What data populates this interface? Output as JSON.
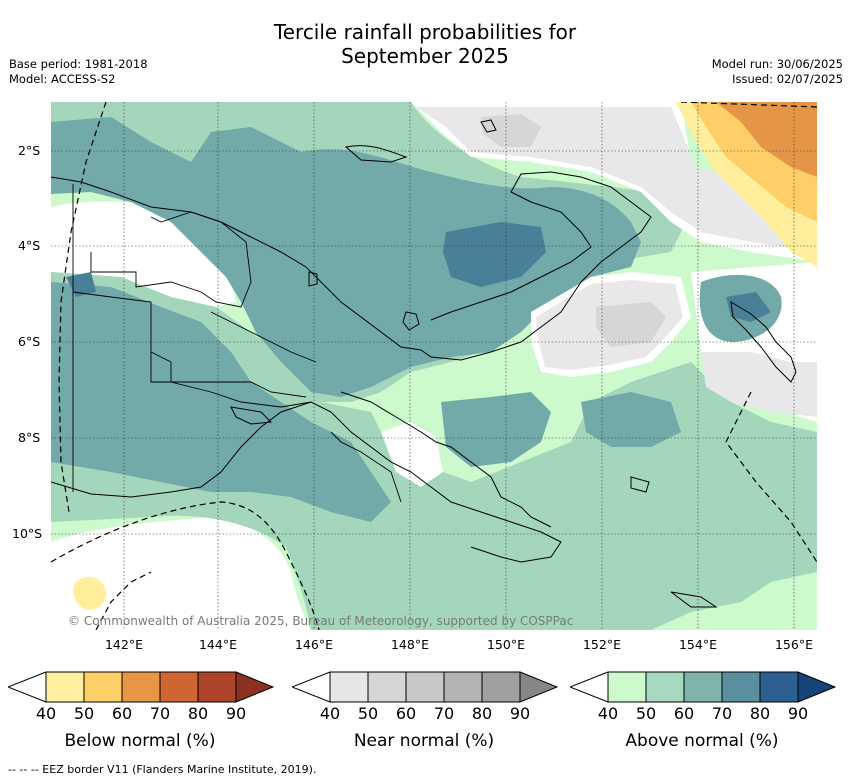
{
  "header": {
    "title_line1": "Tercile rainfall probabilities for",
    "title_line2": "September 2025",
    "base_period": "Base period: 1981-2018",
    "model": "Model: ACCESS-S2",
    "model_run": "Model run: 30/06/2025",
    "issued": "Issued: 02/07/2025"
  },
  "map": {
    "lat_labels": [
      "2°S",
      "4°S",
      "6°S",
      "8°S",
      "10°S"
    ],
    "lon_labels": [
      "142°E",
      "144°E",
      "146°E",
      "148°E",
      "150°E",
      "152°E",
      "154°E",
      "156°E"
    ],
    "copyright": "© Commonwealth of Australia 2025, Bureau of Meteorology, supported by COSPPac",
    "region": "Papua New Guinea"
  },
  "colorbars": [
    {
      "title": "Below normal (%)",
      "ticks": [
        "40",
        "50",
        "60",
        "70",
        "80",
        "90"
      ],
      "colors": [
        "#ffffff",
        "#ffefa0",
        "#fdd068",
        "#e79646",
        "#cf6632",
        "#ad4328",
        "#8c3020"
      ]
    },
    {
      "title": "Near normal (%)",
      "ticks": [
        "40",
        "50",
        "60",
        "70",
        "80",
        "90"
      ],
      "colors": [
        "#ffffff",
        "#e6e6e6",
        "#d6d6d6",
        "#c8c8c8",
        "#b3b3b3",
        "#a0a0a0",
        "#868686"
      ]
    },
    {
      "title": "Above normal (%)",
      "ticks": [
        "40",
        "50",
        "60",
        "70",
        "80",
        "90"
      ],
      "colors": [
        "#ffffff",
        "#ccfacc",
        "#a6d9bf",
        "#7fb3ac",
        "#5a8fa0",
        "#2c6091",
        "#15437a"
      ]
    }
  ],
  "footnote": "--  --  -- EEZ border V11 (Flanders Marine Institute, 2019).",
  "colors": {
    "above_light": "#ccfacc",
    "above_50": "#a3d6bb",
    "above_60": "#72a9a9",
    "above_70": "#4a7f98",
    "near_40": "#e8e8e8",
    "near_50": "#d6d6d6",
    "below_40": "#ffef9c",
    "below_50": "#fdcf66",
    "below_60": "#e49646"
  }
}
